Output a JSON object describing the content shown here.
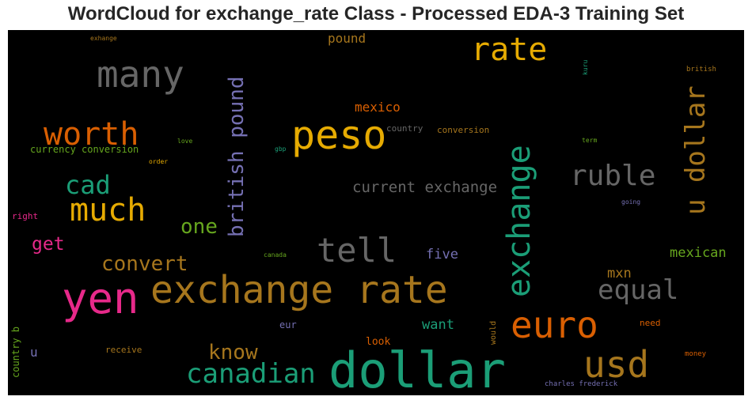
{
  "title": "WordCloud for exchange_rate Class - Processed EDA-3 Training Set",
  "colors": {
    "teal": "#1b9e77",
    "orange": "#d95f02",
    "purple": "#7570b3",
    "pink": "#e7298a",
    "green": "#66a61e",
    "gold": "#e6ab02",
    "brown": "#a6761d",
    "gray": "#666666"
  },
  "words": {
    "dollar": "dollar",
    "yen": "yen",
    "exchange_rate": "exchange rate",
    "peso": "peso",
    "many": "many",
    "rate": "rate",
    "worth": "worth",
    "much": "much",
    "cad": "cad",
    "british_pound": "british pound",
    "exchange": "exchange",
    "u_dollar": "u dollar",
    "ruble": "ruble",
    "euro": "euro",
    "usd": "usd",
    "canadian": "canadian",
    "tell": "tell",
    "equal": "equal",
    "convert": "convert",
    "know": "know",
    "current_exchange": "current exchange",
    "one": "one",
    "get": "get",
    "mexico": "mexico",
    "pound": "pound",
    "mexican": "mexican",
    "five": "five",
    "mxn": "mxn",
    "want": "want",
    "currency_conversion": "currency conversion",
    "country": "country",
    "conversion": "conversion",
    "look": "look",
    "u": "u",
    "country_b": "country b",
    "receive": "receive",
    "eur": "eur",
    "would": "would",
    "need": "need",
    "money": "money",
    "charles_frederick": "charles frederick",
    "right": "right",
    "canada": "canada",
    "going": "going",
    "term": "term",
    "love": "love",
    "gbp": "gbp",
    "order": "order",
    "exhange": "exhange",
    "kuru": "kuru",
    "british": "british"
  }
}
